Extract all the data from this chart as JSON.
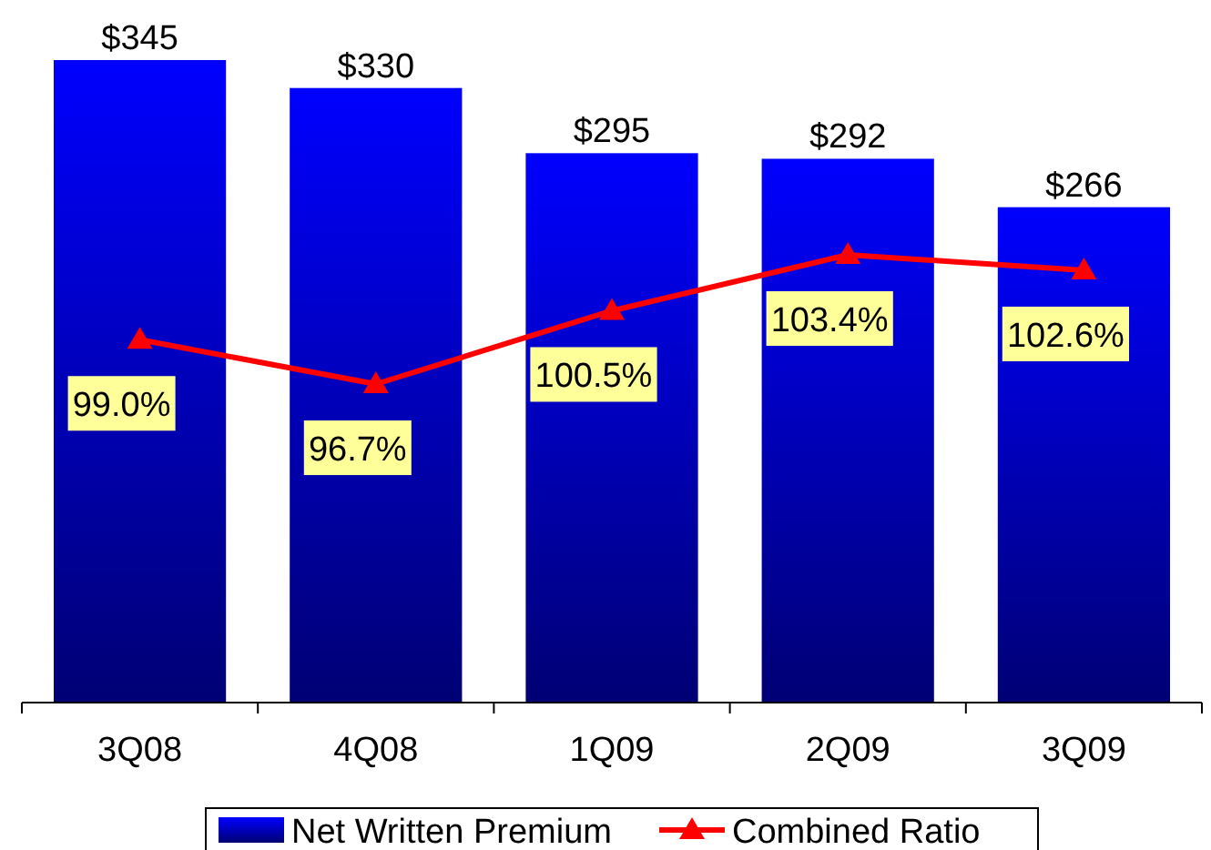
{
  "chart_data": {
    "type": "bar",
    "categories": [
      "3Q08",
      "4Q08",
      "1Q09",
      "2Q09",
      "3Q09"
    ],
    "series": [
      {
        "name": "Net Written Premium",
        "color": "#0000ff",
        "values": [
          345,
          330,
          295,
          292,
          266
        ],
        "value_labels": [
          "$345",
          "$330",
          "$295",
          "$292",
          "$266"
        ]
      },
      {
        "name": "Combined Ratio",
        "type": "line",
        "axis": "y2",
        "color": "#ff0000",
        "marker": "triangle",
        "values": [
          99.0,
          96.7,
          100.5,
          103.4,
          102.6
        ],
        "value_labels": [
          "99.0%",
          "96.7%",
          "100.5%",
          "103.4%",
          "102.6%"
        ]
      }
    ],
    "tick_labels": "x",
    "legend": "bottom"
  }
}
